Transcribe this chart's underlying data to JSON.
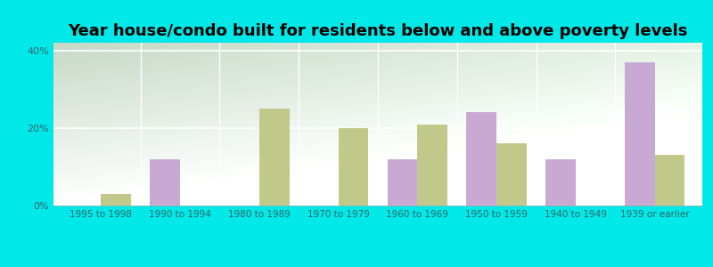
{
  "title": "Year house/condo built for residents below and above poverty levels",
  "categories": [
    "1995 to 1998",
    "1990 to 1994",
    "1980 to 1989",
    "1970 to 1979",
    "1960 to 1969",
    "1950 to 1959",
    "1940 to 1949",
    "1939 or earlier"
  ],
  "below_poverty": [
    0.0,
    12.0,
    0.0,
    0.0,
    12.0,
    24.0,
    12.0,
    37.0
  ],
  "above_poverty": [
    3.0,
    0.0,
    25.0,
    20.0,
    21.0,
    16.0,
    0.0,
    13.0
  ],
  "below_color": "#c9a8d4",
  "above_color": "#c0c98a",
  "ylim": [
    0,
    42
  ],
  "yticks": [
    0,
    20,
    40
  ],
  "ytick_labels": [
    "0%",
    "20%",
    "40%"
  ],
  "outer_bg": "#00e8e8",
  "title_fontsize": 13,
  "bar_width": 0.38
}
